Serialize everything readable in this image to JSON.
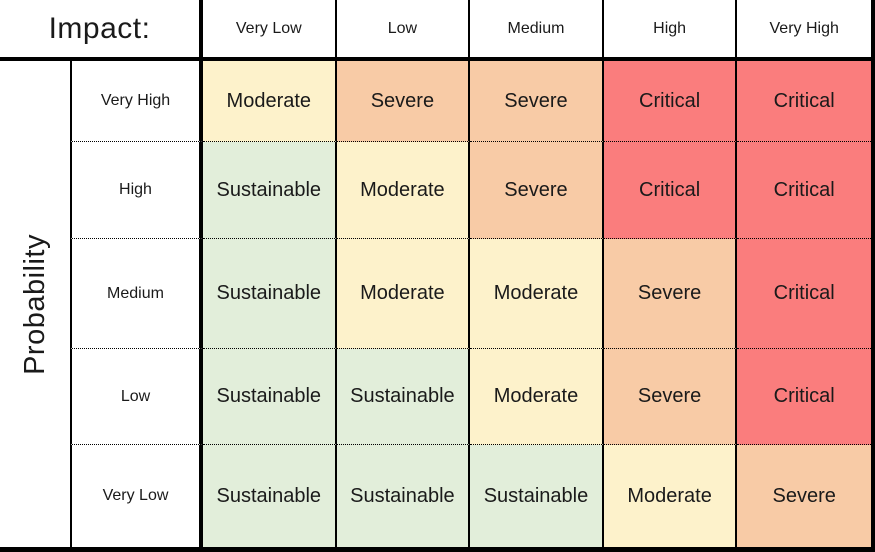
{
  "chart_data": {
    "type": "heatmap",
    "x_axis_label": "Impact:",
    "y_axis_label": "Probability",
    "x_categories": [
      "Very Low",
      "Low",
      "Medium",
      "High",
      "Very High"
    ],
    "y_categories": [
      "Very High",
      "High",
      "Medium",
      "Low",
      "Very Low"
    ],
    "values": [
      [
        "Moderate",
        "Severe",
        "Severe",
        "Critical",
        "Critical"
      ],
      [
        "Sustainable",
        "Moderate",
        "Severe",
        "Critical",
        "Critical"
      ],
      [
        "Sustainable",
        "Moderate",
        "Moderate",
        "Severe",
        "Critical"
      ],
      [
        "Sustainable",
        "Sustainable",
        "Moderate",
        "Severe",
        "Critical"
      ],
      [
        "Sustainable",
        "Sustainable",
        "Sustainable",
        "Moderate",
        "Severe"
      ]
    ],
    "severity_levels": [
      "Sustainable",
      "Moderate",
      "Severe",
      "Critical"
    ],
    "severity_colors": {
      "Sustainable": "#e2eeda",
      "Moderate": "#fdf2cb",
      "Severe": "#f8cba6",
      "Critical": "#fa7d7d"
    },
    "style": {
      "border_color": "#000000",
      "text_color": "#1a1a1a",
      "background": "#ffffff",
      "row_separator": "dotted",
      "column_separator": "solid"
    },
    "legend_position": "none"
  }
}
